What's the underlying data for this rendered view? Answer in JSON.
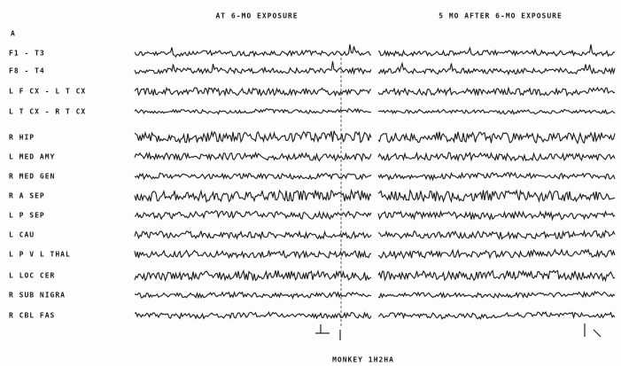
{
  "header": {
    "panel_titles": [
      "AT 6-MO EXPOSURE",
      "5 MO AFTER 6-MO EXPOSURE"
    ],
    "figure_letter": "A"
  },
  "channels": [
    "F1 - T3",
    "F8 - T4",
    "L F CX - L T CX",
    "L T CX - R T CX",
    "R HIP",
    "L MED AMY",
    "R MED GEN",
    "R A SEP",
    "L P SEP",
    "L CAU",
    "L P V L THAL",
    "L LOC CER",
    "R SUB NIGRA",
    "R CBL FAS"
  ],
  "footer": "MONKEY 1H2HA"
}
